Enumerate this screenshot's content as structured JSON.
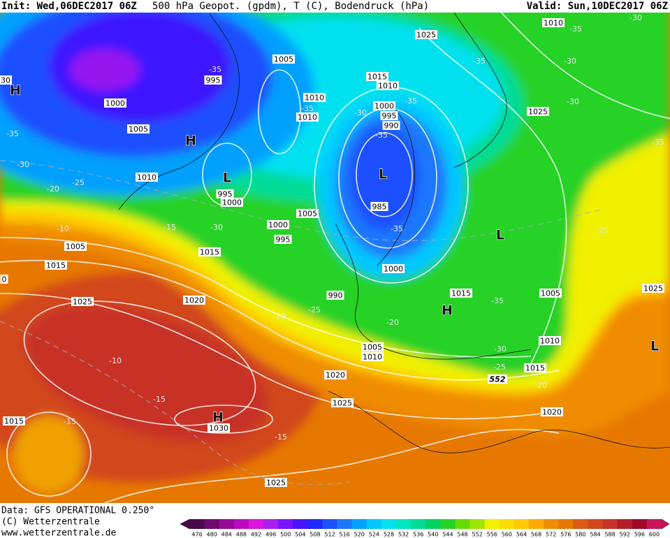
{
  "header": {
    "init": "Init: Wed,06DEC2017 06Z",
    "product": "500 hPa Geopot. (gpdm), T (C), Bodendruck (hPa)",
    "valid": "Valid: Sun,10DEC2017 06Z"
  },
  "footer": {
    "data": "Data: GFS OPERATIONAL 0.250°",
    "copyright": "(C) Wetterzentrale",
    "url": "www.wetterzentrale.de"
  },
  "colorbar": {
    "ticks": [
      476,
      480,
      484,
      488,
      492,
      496,
      500,
      504,
      508,
      512,
      516,
      520,
      524,
      528,
      532,
      536,
      540,
      544,
      548,
      552,
      556,
      560,
      564,
      568,
      572,
      576,
      580,
      584,
      588,
      592,
      596,
      600
    ],
    "colors": [
      "#4b0a4b",
      "#6e0a6e",
      "#960a96",
      "#be0abe",
      "#dc14dc",
      "#aa1ef0",
      "#7814ff",
      "#4614ff",
      "#1e28ff",
      "#1e50ff",
      "#1e78ff",
      "#00a0ff",
      "#00c8ff",
      "#00e1f0",
      "#00e6be",
      "#00dc96",
      "#00d264",
      "#28d228",
      "#64dc00",
      "#a0e600",
      "#f0f000",
      "#ffdc00",
      "#ffc800",
      "#ffaa00",
      "#f08c00",
      "#e67800",
      "#dc5a14",
      "#d2461e",
      "#c83228",
      "#b41e28",
      "#a00a28",
      "#c8145a"
    ]
  },
  "pressure_labels": [
    "1025",
    "1010",
    "1005",
    "995",
    "1000",
    "1005",
    "1015",
    "1010",
    "1010",
    "1010",
    "1000",
    "995",
    "990",
    "1025",
    "1010",
    "995",
    "1000",
    "985",
    "1005",
    "1000",
    "995",
    "1005",
    "1015",
    "1015",
    "1000",
    "990",
    "1015",
    "1005",
    "1025",
    "1025",
    "1020",
    "1010",
    "1005",
    "1010",
    "1015",
    "1020",
    "1025",
    "1020",
    "1015",
    "1030",
    "1025",
    "0",
    "30"
  ],
  "temperature_labels": [
    "-35",
    "-30",
    "-35",
    "-30",
    "-30",
    "-35",
    "-35",
    "-35",
    "-30",
    "-35",
    "-35",
    "-30",
    "-25",
    "-20",
    "-35",
    "-10",
    "-15",
    "-30",
    "-35",
    "-25",
    "-25",
    "-20",
    "-20",
    "-35",
    "-30",
    "-25",
    "-20",
    "-10",
    "-15",
    "-15",
    "-15"
  ],
  "contour_labels": [
    "552"
  ],
  "centers": [
    "H",
    "H",
    "L",
    "L",
    "L",
    "H",
    "L",
    "H"
  ]
}
